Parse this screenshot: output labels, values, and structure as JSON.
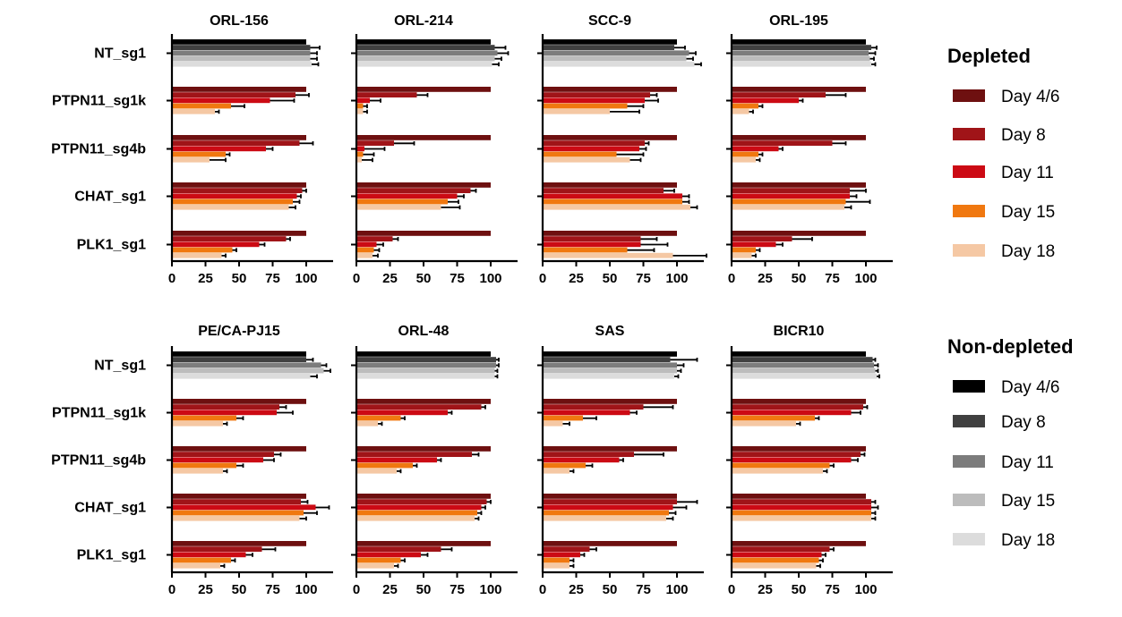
{
  "chart_data": {
    "type": "bar",
    "orientation": "horizontal",
    "categories": [
      "NT_sg1",
      "PTPN11_sg1k",
      "PTPN11_sg4b",
      "CHAT_sg1",
      "PLK1_sg1"
    ],
    "series_names": [
      "Day 4/6",
      "Day 8",
      "Day 11",
      "Day 15",
      "Day 18"
    ],
    "x_ticks": [
      "0",
      "25",
      "50",
      "75",
      "100"
    ],
    "xlim": [
      0,
      120
    ],
    "legends": [
      {
        "title": "Depleted",
        "items": [
          "Day 4/6",
          "Day 8",
          "Day 11",
          "Day 15",
          "Day 18"
        ],
        "colors": [
          "#6e1010",
          "#a01418",
          "#cc0a14",
          "#f07810",
          "#f5c8a4"
        ]
      },
      {
        "title": "Non-depleted",
        "items": [
          "Day 4/6",
          "Day 8",
          "Day 11",
          "Day 15",
          "Day 18"
        ],
        "colors": [
          "#000000",
          "#404040",
          "#7c7c7c",
          "#bcbcbc",
          "#dcdcdc"
        ]
      }
    ],
    "panels": [
      {
        "title": "ORL-156",
        "values": [
          [
            100,
            103,
            103,
            103,
            104
          ],
          [
            100,
            92,
            73,
            44,
            32
          ],
          [
            100,
            95,
            70,
            40,
            28
          ],
          [
            100,
            97,
            93,
            90,
            87
          ],
          [
            100,
            85,
            65,
            45,
            37
          ]
        ],
        "errors": [
          [
            0,
            7,
            5,
            5,
            5
          ],
          [
            0,
            10,
            18,
            10,
            3
          ],
          [
            0,
            10,
            5,
            3,
            12
          ],
          [
            0,
            3,
            3,
            5,
            5
          ],
          [
            0,
            3,
            4,
            3,
            3
          ]
        ]
      },
      {
        "title": "ORL-214",
        "values": [
          [
            100,
            103,
            105,
            103,
            101
          ],
          [
            100,
            45,
            10,
            5,
            5
          ],
          [
            100,
            28,
            6,
            5,
            4
          ],
          [
            100,
            85,
            75,
            68,
            63
          ],
          [
            100,
            27,
            15,
            13,
            12
          ]
        ],
        "errors": [
          [
            0,
            8,
            8,
            5,
            5
          ],
          [
            0,
            8,
            8,
            3,
            3
          ],
          [
            0,
            15,
            15,
            8,
            8
          ],
          [
            0,
            4,
            5,
            8,
            14
          ],
          [
            0,
            4,
            5,
            4,
            4
          ]
        ]
      },
      {
        "title": "SCC-9",
        "values": [
          [
            100,
            98,
            109,
            107,
            113
          ],
          [
            100,
            80,
            76,
            63,
            50
          ],
          [
            100,
            76,
            72,
            55,
            65
          ],
          [
            100,
            90,
            104,
            104,
            110
          ],
          [
            100,
            73,
            73,
            63,
            97
          ]
        ],
        "errors": [
          [
            0,
            8,
            5,
            5,
            5
          ],
          [
            0,
            5,
            10,
            12,
            22
          ],
          [
            0,
            3,
            5,
            20,
            8
          ],
          [
            0,
            8,
            5,
            5,
            5
          ],
          [
            0,
            12,
            20,
            20,
            25
          ]
        ]
      },
      {
        "title": "ORL-195",
        "values": [
          [
            100,
            104,
            102,
            103,
            104
          ],
          [
            100,
            70,
            50,
            20,
            13
          ],
          [
            100,
            75,
            35,
            20,
            18
          ],
          [
            100,
            88,
            88,
            85,
            84
          ],
          [
            100,
            45,
            33,
            18,
            15
          ]
        ],
        "errors": [
          [
            0,
            4,
            5,
            3,
            3
          ],
          [
            0,
            15,
            3,
            3,
            3
          ],
          [
            0,
            10,
            3,
            3,
            3
          ],
          [
            0,
            12,
            5,
            18,
            5
          ],
          [
            0,
            15,
            5,
            3,
            3
          ]
        ]
      },
      {
        "title": "PE/CA-PJ15",
        "values": [
          [
            100,
            100,
            111,
            113,
            103
          ],
          [
            100,
            80,
            78,
            48,
            38
          ],
          [
            100,
            76,
            68,
            48,
            38
          ],
          [
            100,
            96,
            107,
            98,
            95
          ],
          [
            100,
            67,
            55,
            44,
            36
          ]
        ],
        "errors": [
          [
            0,
            5,
            4,
            5,
            5
          ],
          [
            0,
            5,
            12,
            5,
            3
          ],
          [
            0,
            5,
            8,
            5,
            3
          ],
          [
            0,
            5,
            10,
            10,
            5
          ],
          [
            0,
            10,
            5,
            3,
            3
          ]
        ]
      },
      {
        "title": "ORL-48",
        "values": [
          [
            100,
            104,
            104,
            103,
            103
          ],
          [
            100,
            93,
            68,
            33,
            16
          ],
          [
            100,
            86,
            60,
            42,
            30
          ],
          [
            100,
            97,
            93,
            90,
            88
          ],
          [
            100,
            63,
            48,
            33,
            28
          ]
        ],
        "errors": [
          [
            0,
            2,
            2,
            2,
            2
          ],
          [
            0,
            3,
            3,
            3,
            3
          ],
          [
            0,
            5,
            3,
            3,
            3
          ],
          [
            0,
            3,
            3,
            3,
            3
          ],
          [
            0,
            8,
            5,
            3,
            3
          ]
        ]
      },
      {
        "title": "SAS",
        "values": [
          [
            100,
            95,
            100,
            100,
            98
          ],
          [
            100,
            75,
            65,
            30,
            15
          ],
          [
            100,
            68,
            57,
            32,
            20
          ],
          [
            100,
            100,
            97,
            94,
            92
          ],
          [
            100,
            35,
            28,
            20,
            20
          ]
        ],
        "errors": [
          [
            0,
            20,
            5,
            3,
            3
          ],
          [
            0,
            22,
            5,
            10,
            5
          ],
          [
            0,
            22,
            3,
            5,
            3
          ],
          [
            0,
            15,
            10,
            5,
            5
          ],
          [
            0,
            5,
            3,
            3,
            3
          ]
        ]
      },
      {
        "title": "BICR10",
        "values": [
          [
            100,
            105,
            106,
            107,
            108
          ],
          [
            100,
            98,
            89,
            62,
            48
          ],
          [
            100,
            96,
            89,
            73,
            68
          ],
          [
            100,
            104,
            104,
            104,
            104
          ],
          [
            100,
            73,
            67,
            65,
            63
          ]
        ],
        "errors": [
          [
            0,
            2,
            3,
            2,
            2
          ],
          [
            0,
            3,
            7,
            3,
            3
          ],
          [
            0,
            3,
            5,
            3,
            3
          ],
          [
            0,
            3,
            5,
            3,
            3
          ],
          [
            0,
            3,
            3,
            3,
            3
          ]
        ]
      }
    ]
  }
}
